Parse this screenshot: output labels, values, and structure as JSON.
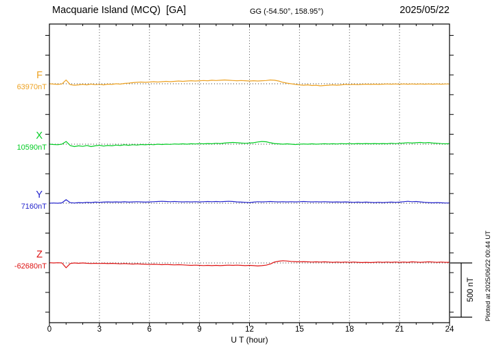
{
  "header": {
    "title": "Macquarie Island (MCQ)  [GA]",
    "coords": "GG (-54.50°, 158.95°)",
    "date": "2025/05/22"
  },
  "footer": {
    "plotted_at": "Plotted at 2025/06/22 00:44 UT"
  },
  "axis": {
    "xlabel": "U T (hour)"
  },
  "chart_data": {
    "type": "line",
    "title": "Macquarie Island (MCQ) [GA] magnetogram, 2025/05/22",
    "xlabel": "U T (hour)",
    "x_range": [
      0,
      24
    ],
    "x_major_ticks": [
      0,
      3,
      6,
      9,
      12,
      15,
      18,
      21,
      24
    ],
    "x_minor_tick_step_hours": 1,
    "sample_step_hours": 0.25,
    "grid": "dotted vertical lines every 3 hours; dotted horizontal baseline per channel",
    "scale_bar": {
      "label": "500 nT",
      "span_nT": 500
    },
    "series": [
      {
        "name": "F",
        "label": "F",
        "baseline_label": "63970nT",
        "baseline_nT": 63970,
        "color": "#EDA120",
        "offsets_nT": [
          0,
          -3,
          -6,
          -2,
          35,
          -8,
          -13,
          -10,
          -6,
          -10,
          -3,
          -8,
          -5,
          -10,
          -4,
          -6,
          0,
          -3,
          3,
          6,
          10,
          13,
          16,
          13,
          16,
          19,
          16,
          19,
          22,
          19,
          22,
          25,
          22,
          25,
          28,
          25,
          28,
          30,
          28,
          32,
          30,
          32,
          35,
          32,
          30,
          28,
          30,
          28,
          25,
          28,
          25,
          28,
          30,
          35,
          32,
          25,
          13,
          6,
          0,
          -6,
          -10,
          -13,
          -10,
          -16,
          -13,
          -19,
          -16,
          -13,
          -10,
          -13,
          -10,
          -6,
          -8,
          -6,
          -8,
          -6,
          -4,
          -6,
          -4,
          -6,
          -4,
          -2,
          -4,
          -2,
          -4,
          -2,
          -4,
          -2,
          -4,
          -2,
          -4,
          -2,
          -4,
          -2,
          -4,
          -2,
          -2
        ]
      },
      {
        "name": "X",
        "label": "X",
        "baseline_label": "10590nT",
        "baseline_nT": 10590,
        "color": "#00CC22",
        "offsets_nT": [
          0,
          -3,
          -5,
          0,
          25,
          -13,
          -22,
          -15,
          -20,
          -12,
          -22,
          -15,
          -10,
          -18,
          -12,
          -15,
          -8,
          -12,
          -6,
          -10,
          -5,
          -8,
          -3,
          -6,
          -2,
          -5,
          0,
          -3,
          0,
          -2,
          2,
          0,
          3,
          0,
          4,
          2,
          5,
          3,
          6,
          4,
          8,
          6,
          10,
          13,
          16,
          13,
          10,
          8,
          10,
          13,
          20,
          25,
          22,
          13,
          6,
          3,
          0,
          3,
          0,
          -3,
          0,
          2,
          0,
          3,
          0,
          2,
          4,
          2,
          4,
          2,
          5,
          3,
          5,
          3,
          6,
          4,
          6,
          4,
          6,
          4,
          6,
          4,
          8,
          5,
          8,
          10,
          14,
          10,
          13,
          16,
          12,
          15,
          10,
          8,
          5,
          3,
          5
        ]
      },
      {
        "name": "Y",
        "label": "Y",
        "baseline_label": "7160nT",
        "baseline_nT": 7160,
        "color": "#2222CC",
        "offsets_nT": [
          0,
          2,
          0,
          3,
          32,
          5,
          2,
          6,
          4,
          8,
          6,
          10,
          8,
          10,
          12,
          10,
          12,
          10,
          13,
          10,
          12,
          14,
          12,
          10,
          12,
          14,
          16,
          18,
          16,
          14,
          16,
          14,
          12,
          14,
          12,
          14,
          12,
          14,
          16,
          14,
          16,
          14,
          16,
          18,
          16,
          12,
          10,
          8,
          6,
          10,
          14,
          12,
          14,
          16,
          14,
          12,
          14,
          12,
          14,
          12,
          14,
          16,
          14,
          12,
          14,
          12,
          14,
          12,
          10,
          12,
          10,
          12,
          10,
          8,
          10,
          8,
          10,
          8,
          6,
          8,
          6,
          8,
          10,
          8,
          10,
          14,
          18,
          14,
          16,
          12,
          8,
          6,
          4,
          6,
          4,
          2,
          2
        ]
      },
      {
        "name": "Z",
        "label": "Z",
        "baseline_label": "-62680nT",
        "baseline_nT": -62680,
        "color": "#DD1111",
        "offsets_nT": [
          2,
          0,
          2,
          0,
          -44,
          -5,
          0,
          -3,
          0,
          -3,
          -5,
          -3,
          -5,
          -3,
          -6,
          -4,
          -6,
          -8,
          -6,
          -8,
          -10,
          -8,
          -10,
          -12,
          -14,
          -12,
          -14,
          -16,
          -14,
          -16,
          -18,
          -16,
          -18,
          -20,
          -22,
          -20,
          -22,
          -24,
          -22,
          -25,
          -22,
          -25,
          -22,
          -20,
          -22,
          -20,
          -22,
          -25,
          -22,
          -25,
          -28,
          -25,
          -20,
          -10,
          8,
          16,
          20,
          18,
          14,
          12,
          10,
          12,
          10,
          8,
          10,
          8,
          10,
          8,
          6,
          8,
          6,
          8,
          6,
          8,
          6,
          4,
          6,
          4,
          6,
          8,
          6,
          8,
          6,
          8,
          6,
          8,
          6,
          10,
          8,
          6,
          8,
          10,
          8,
          6,
          8,
          6,
          6
        ]
      }
    ]
  }
}
